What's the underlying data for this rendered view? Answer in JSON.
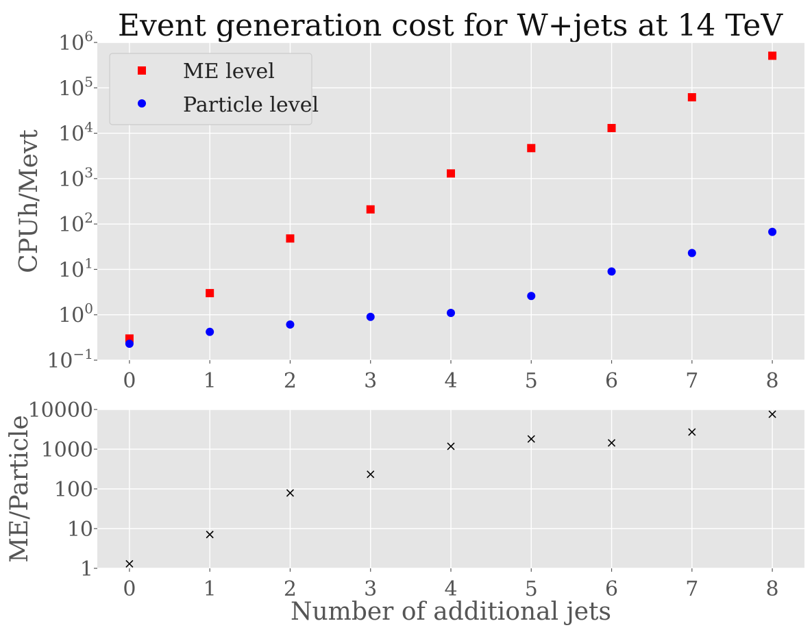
{
  "chart_data": [
    {
      "type": "scatter",
      "title": "Event generation cost for W+jets at 14 TeV",
      "xlabel": "",
      "ylabel": "CPUh/Mevt",
      "yscale": "log",
      "xlim": [
        -0.4,
        8.4
      ],
      "ylim": [
        0.1,
        1000000
      ],
      "x": [
        0,
        1,
        2,
        3,
        4,
        5,
        6,
        7,
        8
      ],
      "x_tick_labels": [
        "0",
        "1",
        "2",
        "3",
        "4",
        "5",
        "6",
        "7",
        "8"
      ],
      "y_ticks": [
        {
          "value": 0.1,
          "base": "10",
          "exp": "−1"
        },
        {
          "value": 1,
          "base": "10",
          "exp": "0"
        },
        {
          "value": 10,
          "base": "10",
          "exp": "1"
        },
        {
          "value": 100,
          "base": "10",
          "exp": "2"
        },
        {
          "value": 1000,
          "base": "10",
          "exp": "3"
        },
        {
          "value": 10000,
          "base": "10",
          "exp": "4"
        },
        {
          "value": 100000,
          "base": "10",
          "exp": "5"
        },
        {
          "value": 1000000,
          "base": "10",
          "exp": "6"
        }
      ],
      "series": [
        {
          "name": "ME level",
          "marker": "square",
          "color": "#ff0000",
          "values": [
            0.3,
            3.0,
            48,
            210,
            1300,
            4700,
            13000,
            62000,
            510000
          ]
        },
        {
          "name": "Particle level",
          "marker": "circle",
          "color": "#0000ff",
          "values": [
            0.23,
            0.42,
            0.61,
            0.9,
            1.1,
            2.6,
            9.0,
            23,
            67
          ]
        }
      ],
      "legend": {
        "position": "top-left",
        "entries": [
          "ME level",
          "Particle level"
        ]
      },
      "grid": true
    },
    {
      "type": "scatter",
      "title": "",
      "xlabel": "Number of additional jets",
      "ylabel": "ME/Particle",
      "yscale": "log",
      "xlim": [
        -0.4,
        8.4
      ],
      "ylim": [
        1,
        10000
      ],
      "x": [
        0,
        1,
        2,
        3,
        4,
        5,
        6,
        7,
        8
      ],
      "x_tick_labels": [
        "0",
        "1",
        "2",
        "3",
        "4",
        "5",
        "6",
        "7",
        "8"
      ],
      "y_ticks": [
        {
          "value": 1,
          "label": "1"
        },
        {
          "value": 10,
          "label": "10"
        },
        {
          "value": 100,
          "label": "100"
        },
        {
          "value": 1000,
          "label": "1000"
        },
        {
          "value": 10000,
          "label": "10000"
        }
      ],
      "series": [
        {
          "name": "ME/Particle",
          "marker": "x",
          "color": "#000000",
          "values": [
            1.3,
            7.1,
            79,
            233,
            1180,
            1810,
            1440,
            2700,
            7600
          ]
        }
      ],
      "grid": true
    }
  ],
  "colors": {
    "plot_background": "#e5e5e5",
    "grid": "#ffffff",
    "tick_text": "#555555"
  }
}
